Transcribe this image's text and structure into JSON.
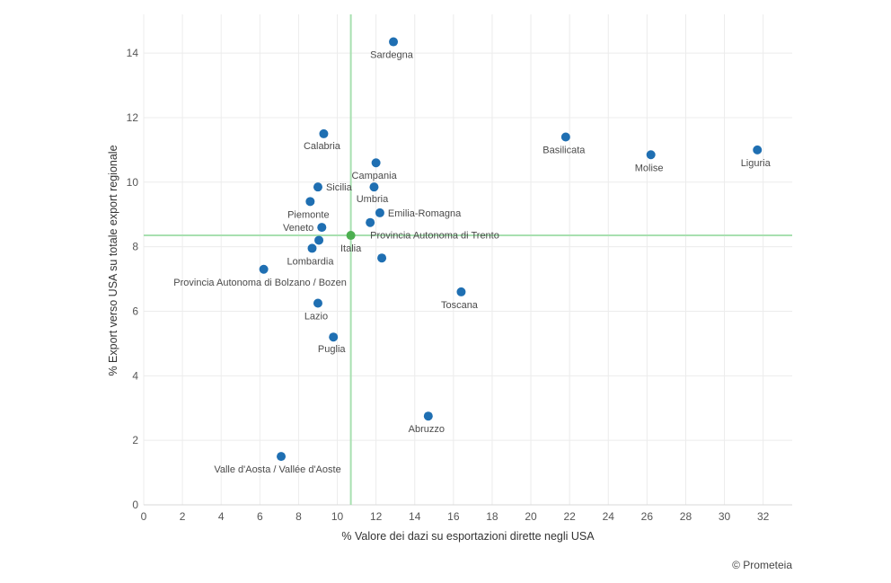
{
  "credit": "© Prometeia",
  "chart_data": {
    "type": "scatter",
    "title": "",
    "xlabel": "% Valore dei dazi su esportazioni dirette negli USA",
    "ylabel": "% Export verso USA su totale export regionale",
    "xlim": [
      0,
      33.5
    ],
    "ylim": [
      0,
      15.2
    ],
    "x_ticks": [
      0,
      2,
      4,
      6,
      8,
      10,
      12,
      14,
      16,
      18,
      20,
      22,
      24,
      26,
      28,
      30,
      32
    ],
    "y_ticks": [
      0,
      2,
      4,
      6,
      8,
      10,
      12,
      14
    ],
    "grid": true,
    "reference_lines": {
      "x": 10.7,
      "y": 8.35,
      "color": "#a8e0b0"
    },
    "colors": {
      "regions": "#1f6fb2",
      "italy": "#4caf50"
    },
    "points": [
      {
        "label": "Sardegna",
        "x": 12.9,
        "y": 14.35
      },
      {
        "label": "Calabria",
        "x": 9.3,
        "y": 11.5
      },
      {
        "label": "Basilicata",
        "x": 21.8,
        "y": 11.4
      },
      {
        "label": "Liguria",
        "x": 31.7,
        "y": 11.0
      },
      {
        "label": "Molise",
        "x": 26.2,
        "y": 10.85
      },
      {
        "label": "Campania",
        "x": 12.0,
        "y": 10.6
      },
      {
        "label": "Sicilia",
        "x": 9.0,
        "y": 9.85
      },
      {
        "label": "Umbria",
        "x": 11.9,
        "y": 9.85
      },
      {
        "label": "Piemonte",
        "x": 8.6,
        "y": 9.4
      },
      {
        "label": "Emilia-Romagna",
        "x": 12.2,
        "y": 9.05
      },
      {
        "label": "Provincia Autonoma di Trento",
        "x": 11.7,
        "y": 8.75
      },
      {
        "label": "Veneto",
        "x": 9.2,
        "y": 8.6
      },
      {
        "label": "Lombardia",
        "x": 8.7,
        "y": 7.95
      },
      {
        "label": "",
        "x": 9.05,
        "y": 8.2
      },
      {
        "label": "",
        "x": 12.3,
        "y": 7.65
      },
      {
        "label": "Provincia Autonoma di Bolzano / Bozen",
        "x": 6.2,
        "y": 7.3
      },
      {
        "label": "Toscana",
        "x": 16.4,
        "y": 6.6
      },
      {
        "label": "Lazio",
        "x": 9.0,
        "y": 6.25
      },
      {
        "label": "Puglia",
        "x": 9.8,
        "y": 5.2
      },
      {
        "label": "Abruzzo",
        "x": 14.7,
        "y": 2.75
      },
      {
        "label": "Valle d'Aosta / Vallée d'Aoste",
        "x": 7.1,
        "y": 1.5
      },
      {
        "label": "Italia",
        "x": 10.7,
        "y": 8.35,
        "highlight": true
      }
    ]
  }
}
